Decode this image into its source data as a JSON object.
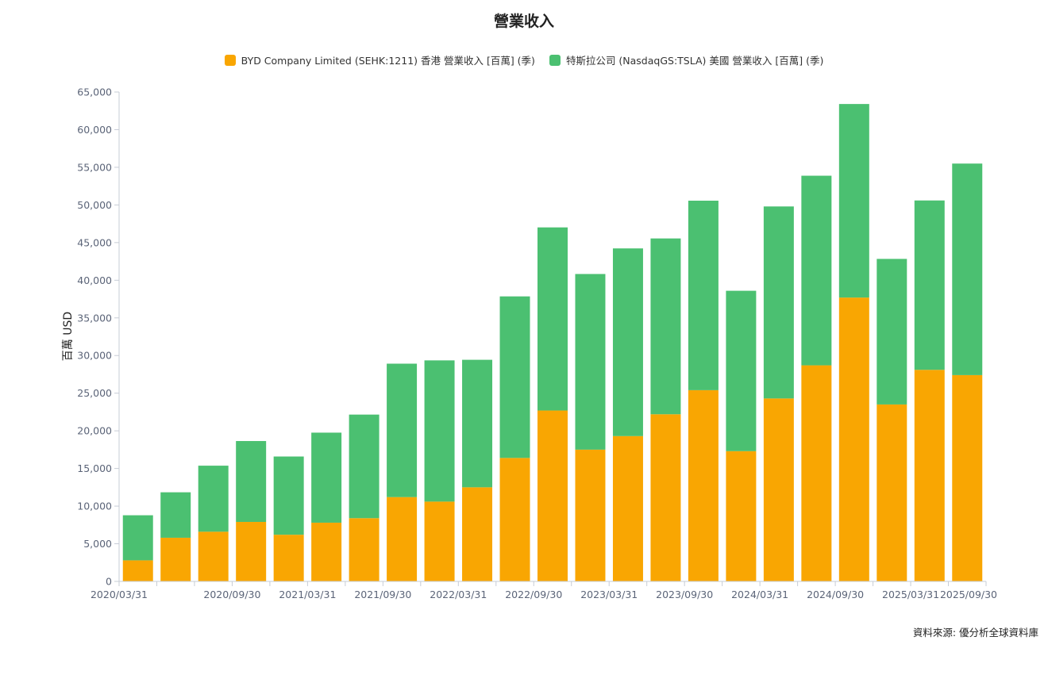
{
  "chart_data": {
    "type": "bar",
    "stacked": true,
    "title": "營業收入",
    "ylabel": "百萬 USD",
    "xlabel": "",
    "ylim": [
      0,
      65000
    ],
    "yticks": [
      0,
      5000,
      10000,
      15000,
      20000,
      25000,
      30000,
      35000,
      40000,
      45000,
      50000,
      55000,
      60000,
      65000
    ],
    "ytick_labels": [
      "0",
      "5,000",
      "10,000",
      "15,000",
      "20,000",
      "25,000",
      "30,000",
      "35,000",
      "40,000",
      "45,000",
      "50,000",
      "55,000",
      "60,000",
      "65,000"
    ],
    "categories": [
      "2020/03/31",
      "2020/06/30",
      "2020/09/30",
      "2020/12/31",
      "2021/03/31",
      "2021/06/30",
      "2021/09/30",
      "2021/12/31",
      "2022/03/31",
      "2022/06/30",
      "2022/09/30",
      "2022/12/31",
      "2023/03/31",
      "2023/06/30",
      "2023/09/30",
      "2023/12/31",
      "2024/03/31",
      "2024/06/30",
      "2024/09/30",
      "2024/12/31",
      "2025/03/31",
      "2025/06/30",
      "2025/09/30"
    ],
    "xtick_labels": [
      "2020/03/31",
      "2020/09/30",
      "2021/03/31",
      "2021/09/30",
      "2022/03/31",
      "2022/09/30",
      "2023/03/31",
      "2023/09/30",
      "2024/03/31",
      "2024/09/30",
      "2025/03/31",
      "2025/09/30"
    ],
    "legend_position": "top-center",
    "grid": false,
    "series": [
      {
        "name": "BYD Company Limited (SEHK:1211) 香港 營業收入 [百萬] (季)",
        "color": "#f9a602",
        "values": [
          2800,
          5800,
          6600,
          7900,
          6200,
          7800,
          8400,
          11200,
          10600,
          12500,
          16400,
          22700,
          17500,
          19300,
          22200,
          25400,
          17300,
          24300,
          28700,
          37700,
          23500,
          28100,
          27400
        ]
      },
      {
        "name": "特斯拉公司 (NasdaqGS:TSLA) 美國 營業收入 [百萬] (季)",
        "color": "#4bc071",
        "values": [
          5985,
          6036,
          8771,
          10744,
          10389,
          11958,
          13757,
          17719,
          18756,
          16934,
          21454,
          24318,
          23329,
          24927,
          23350,
          25167,
          21301,
          25500,
          25182,
          25707,
          19335,
          22496,
          28095
        ]
      }
    ]
  },
  "source_note": "資料來源: 優分析全球資料庫"
}
